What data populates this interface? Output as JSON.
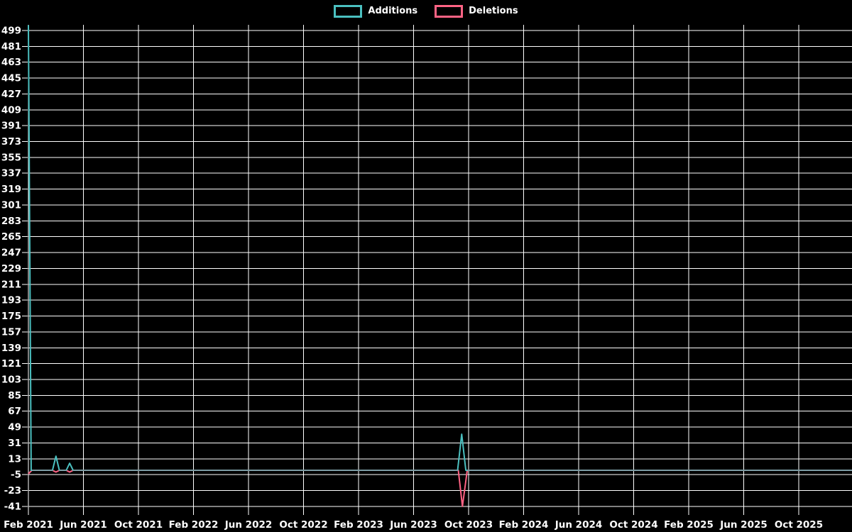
{
  "page": {
    "background": "#000000",
    "text_color": "#ffffff"
  },
  "chart_data": {
    "type": "line",
    "title": "",
    "legend_position": "top-center",
    "legend": [
      {
        "label": "Additions",
        "color": "#4bc0c0"
      },
      {
        "label": "Deletions",
        "color": "#ff6384"
      }
    ],
    "x_axis": {
      "unit": "months since Feb 2021",
      "tick_step_months": 4,
      "tick_labels": [
        "Feb 2021",
        "Jun 2021",
        "Oct 2021",
        "Feb 2022",
        "Jun 2022",
        "Oct 2022",
        "Feb 2023",
        "Jun 2023",
        "Oct 2023",
        "Feb 2024",
        "Jun 2024",
        "Oct 2024",
        "Feb 2025",
        "Jun 2025",
        "Oct 2025"
      ]
    },
    "y_axis": {
      "ticks": [
        499,
        481,
        463,
        445,
        427,
        409,
        391,
        373,
        355,
        337,
        319,
        301,
        283,
        265,
        247,
        229,
        211,
        193,
        175,
        157,
        139,
        121,
        103,
        85,
        67,
        49,
        31,
        13,
        -5,
        -23,
        -41
      ],
      "tick_step": 18,
      "plot_min": -44,
      "plot_max": 505
    },
    "grid": {
      "show": true,
      "color": "#ffffff"
    },
    "series": [
      {
        "name": "Additions",
        "color": "#4bc0c0",
        "points": [
          [
            0,
            505
          ],
          [
            0.2,
            0
          ],
          [
            1.75,
            0
          ],
          [
            2,
            16
          ],
          [
            2.25,
            0
          ],
          [
            2.75,
            0
          ],
          [
            3,
            8
          ],
          [
            3.25,
            0
          ],
          [
            31.2,
            0
          ],
          [
            31.5,
            41
          ],
          [
            31.8,
            0
          ],
          [
            59.9,
            0
          ]
        ]
      },
      {
        "name": "Deletions",
        "color": "#ff6384",
        "points": [
          [
            0,
            -4
          ],
          [
            0.25,
            0
          ],
          [
            1.75,
            0
          ],
          [
            2,
            -2
          ],
          [
            2.25,
            0
          ],
          [
            2.75,
            0
          ],
          [
            3,
            -2
          ],
          [
            3.25,
            0
          ],
          [
            31.25,
            0
          ],
          [
            31.55,
            -41
          ],
          [
            31.9,
            0
          ],
          [
            59.9,
            0
          ]
        ]
      }
    ],
    "overlap_line_color": "#7d9ca4",
    "notes": "Additions spike at chart start reaches the top of the plot (above the 499 tick); elsewhere both series sit at 0 and overlap, rendering as a gray-teal baseline."
  }
}
